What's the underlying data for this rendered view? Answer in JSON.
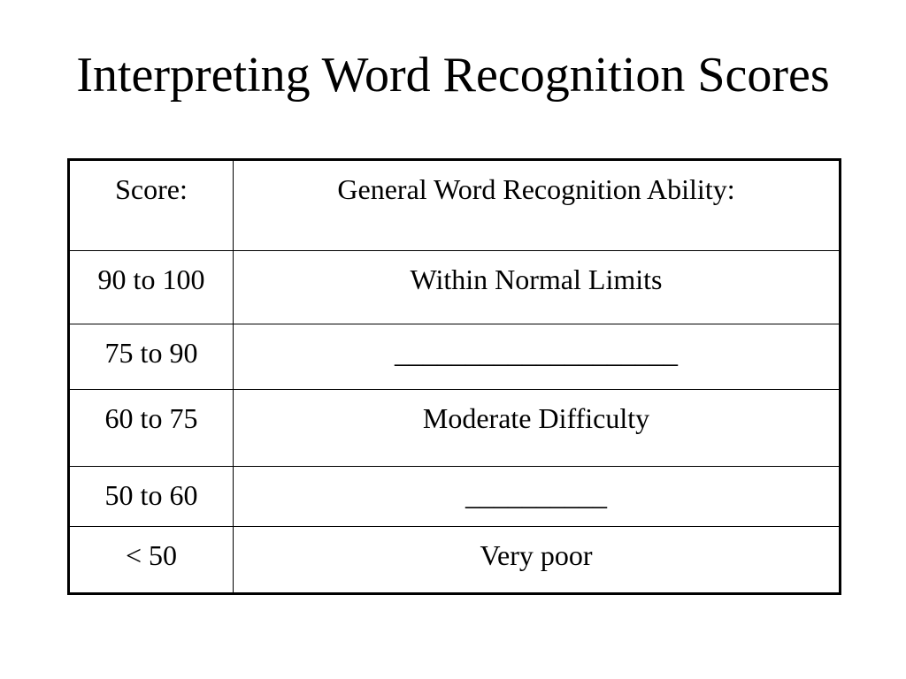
{
  "slide": {
    "title": "Interpreting Word Recognition Scores"
  },
  "table": {
    "headers": [
      "Score:",
      "General Word Recognition Ability:"
    ],
    "rows": [
      {
        "score": "90 to 100",
        "ability": "Within Normal Limits"
      },
      {
        "score": "75 to 90",
        "ability": "____________________"
      },
      {
        "score": "60 to 75",
        "ability": "Moderate Difficulty"
      },
      {
        "score": "50 to 60",
        "ability": "__________"
      },
      {
        "score": "< 50",
        "ability": "Very poor"
      }
    ]
  }
}
